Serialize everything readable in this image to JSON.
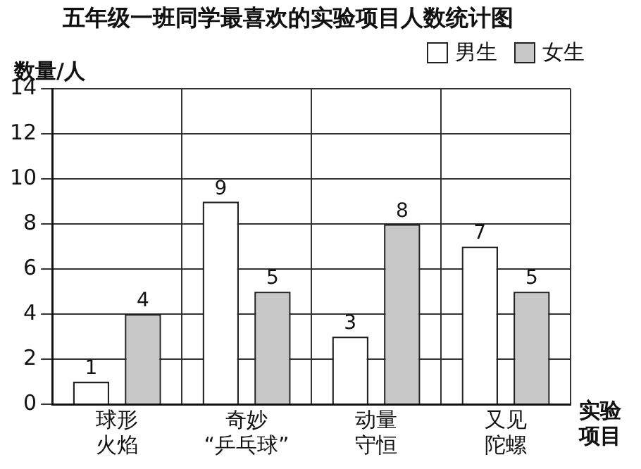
{
  "chart_data": {
    "type": "bar",
    "title": "五年级一班同学最喜欢的实验项目人数统计图",
    "xlabel": "实验项目",
    "ylabel": "数量/人",
    "categories": [
      "球形火焰",
      "奇妙“乒乓球”",
      "动量守恒",
      "又见陀螺"
    ],
    "series": [
      {
        "name": "男生",
        "color": "#ffffff",
        "values": [
          1,
          9,
          3,
          7
        ]
      },
      {
        "name": "女生",
        "color": "#c8c8c8",
        "values": [
          4,
          5,
          8,
          5
        ]
      }
    ],
    "ylim": [
      0,
      14
    ],
    "yticks": [
      0,
      2,
      4,
      6,
      8,
      10,
      12,
      14
    ],
    "grid": true,
    "legend": "top right",
    "data_labels": true
  }
}
